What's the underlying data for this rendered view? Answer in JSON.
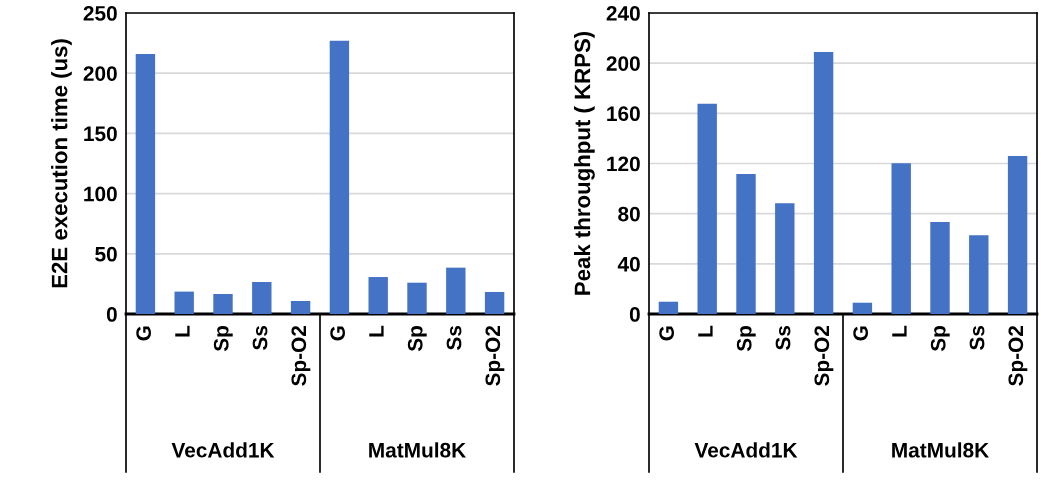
{
  "chart_data": [
    {
      "type": "bar",
      "ylabel": "E2E execution time (us)",
      "categories": [
        "G",
        "L",
        "Sp",
        "Ss",
        "Sp-O2",
        "G",
        "L",
        "Sp",
        "Ss",
        "Sp-O2"
      ],
      "values": [
        216,
        18.6,
        16.6,
        26.6,
        10.8,
        227,
        30.7,
        26,
        38.5,
        18.3
      ],
      "color": "#4472c4",
      "ylim": [
        0,
        250
      ],
      "yticks": [
        0,
        50,
        100,
        150,
        200,
        250
      ],
      "grid": "y",
      "annotations": [
        "VecAdd1K",
        "MatMul8K"
      ]
    },
    {
      "type": "bar",
      "ylabel": "Peak throughput ( KRPS)",
      "categories": [
        "G",
        "L",
        "Sp",
        "Ss",
        "Sp-O2",
        "G",
        "L",
        "Sp",
        "Ss",
        "Sp-O2"
      ],
      "values": [
        9.8,
        167.6,
        111.7,
        88.3,
        209,
        9,
        120.2,
        73.4,
        62.8,
        126
      ],
      "color": "#4472c4",
      "ylim": [
        0,
        240
      ],
      "yticks": [
        0,
        40,
        80,
        120,
        160,
        200,
        240
      ],
      "grid": "y",
      "annotations": [
        "VecAdd1K",
        "MatMul8K"
      ]
    }
  ]
}
